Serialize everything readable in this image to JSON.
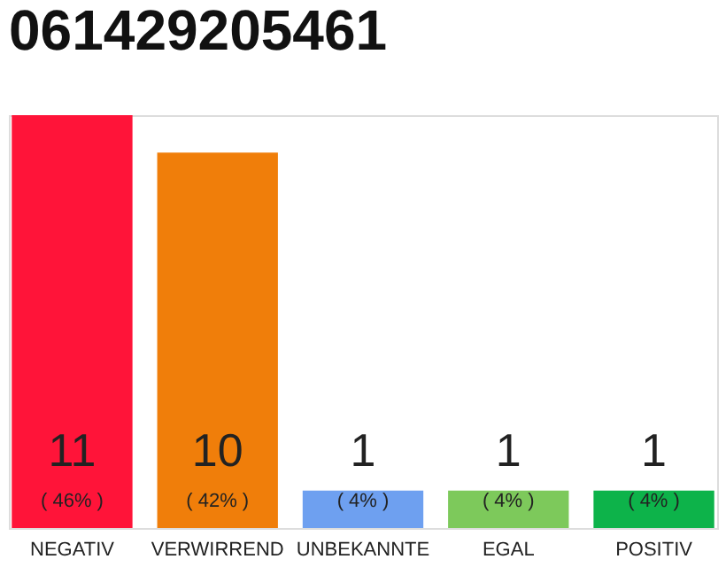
{
  "chart_data": {
    "type": "bar",
    "title": "061429205461",
    "categories": [
      "NEGATIV",
      "VERWIRREND",
      "UNBEKANNTE",
      "EGAL",
      "POSITIV"
    ],
    "values": [
      11,
      10,
      1,
      1,
      1
    ],
    "colors": [
      "#ff1439",
      "#f07e0a",
      "#6ea0f0",
      "#7dc95b",
      "#0db34a"
    ],
    "ylim": [
      0,
      11
    ],
    "tick_labels": "x",
    "grid": false,
    "data_labels": true,
    "annotations": [
      "( 46% )",
      "( 42% )",
      "( 4% )",
      "( 4% )",
      "( 4% )"
    ]
  }
}
